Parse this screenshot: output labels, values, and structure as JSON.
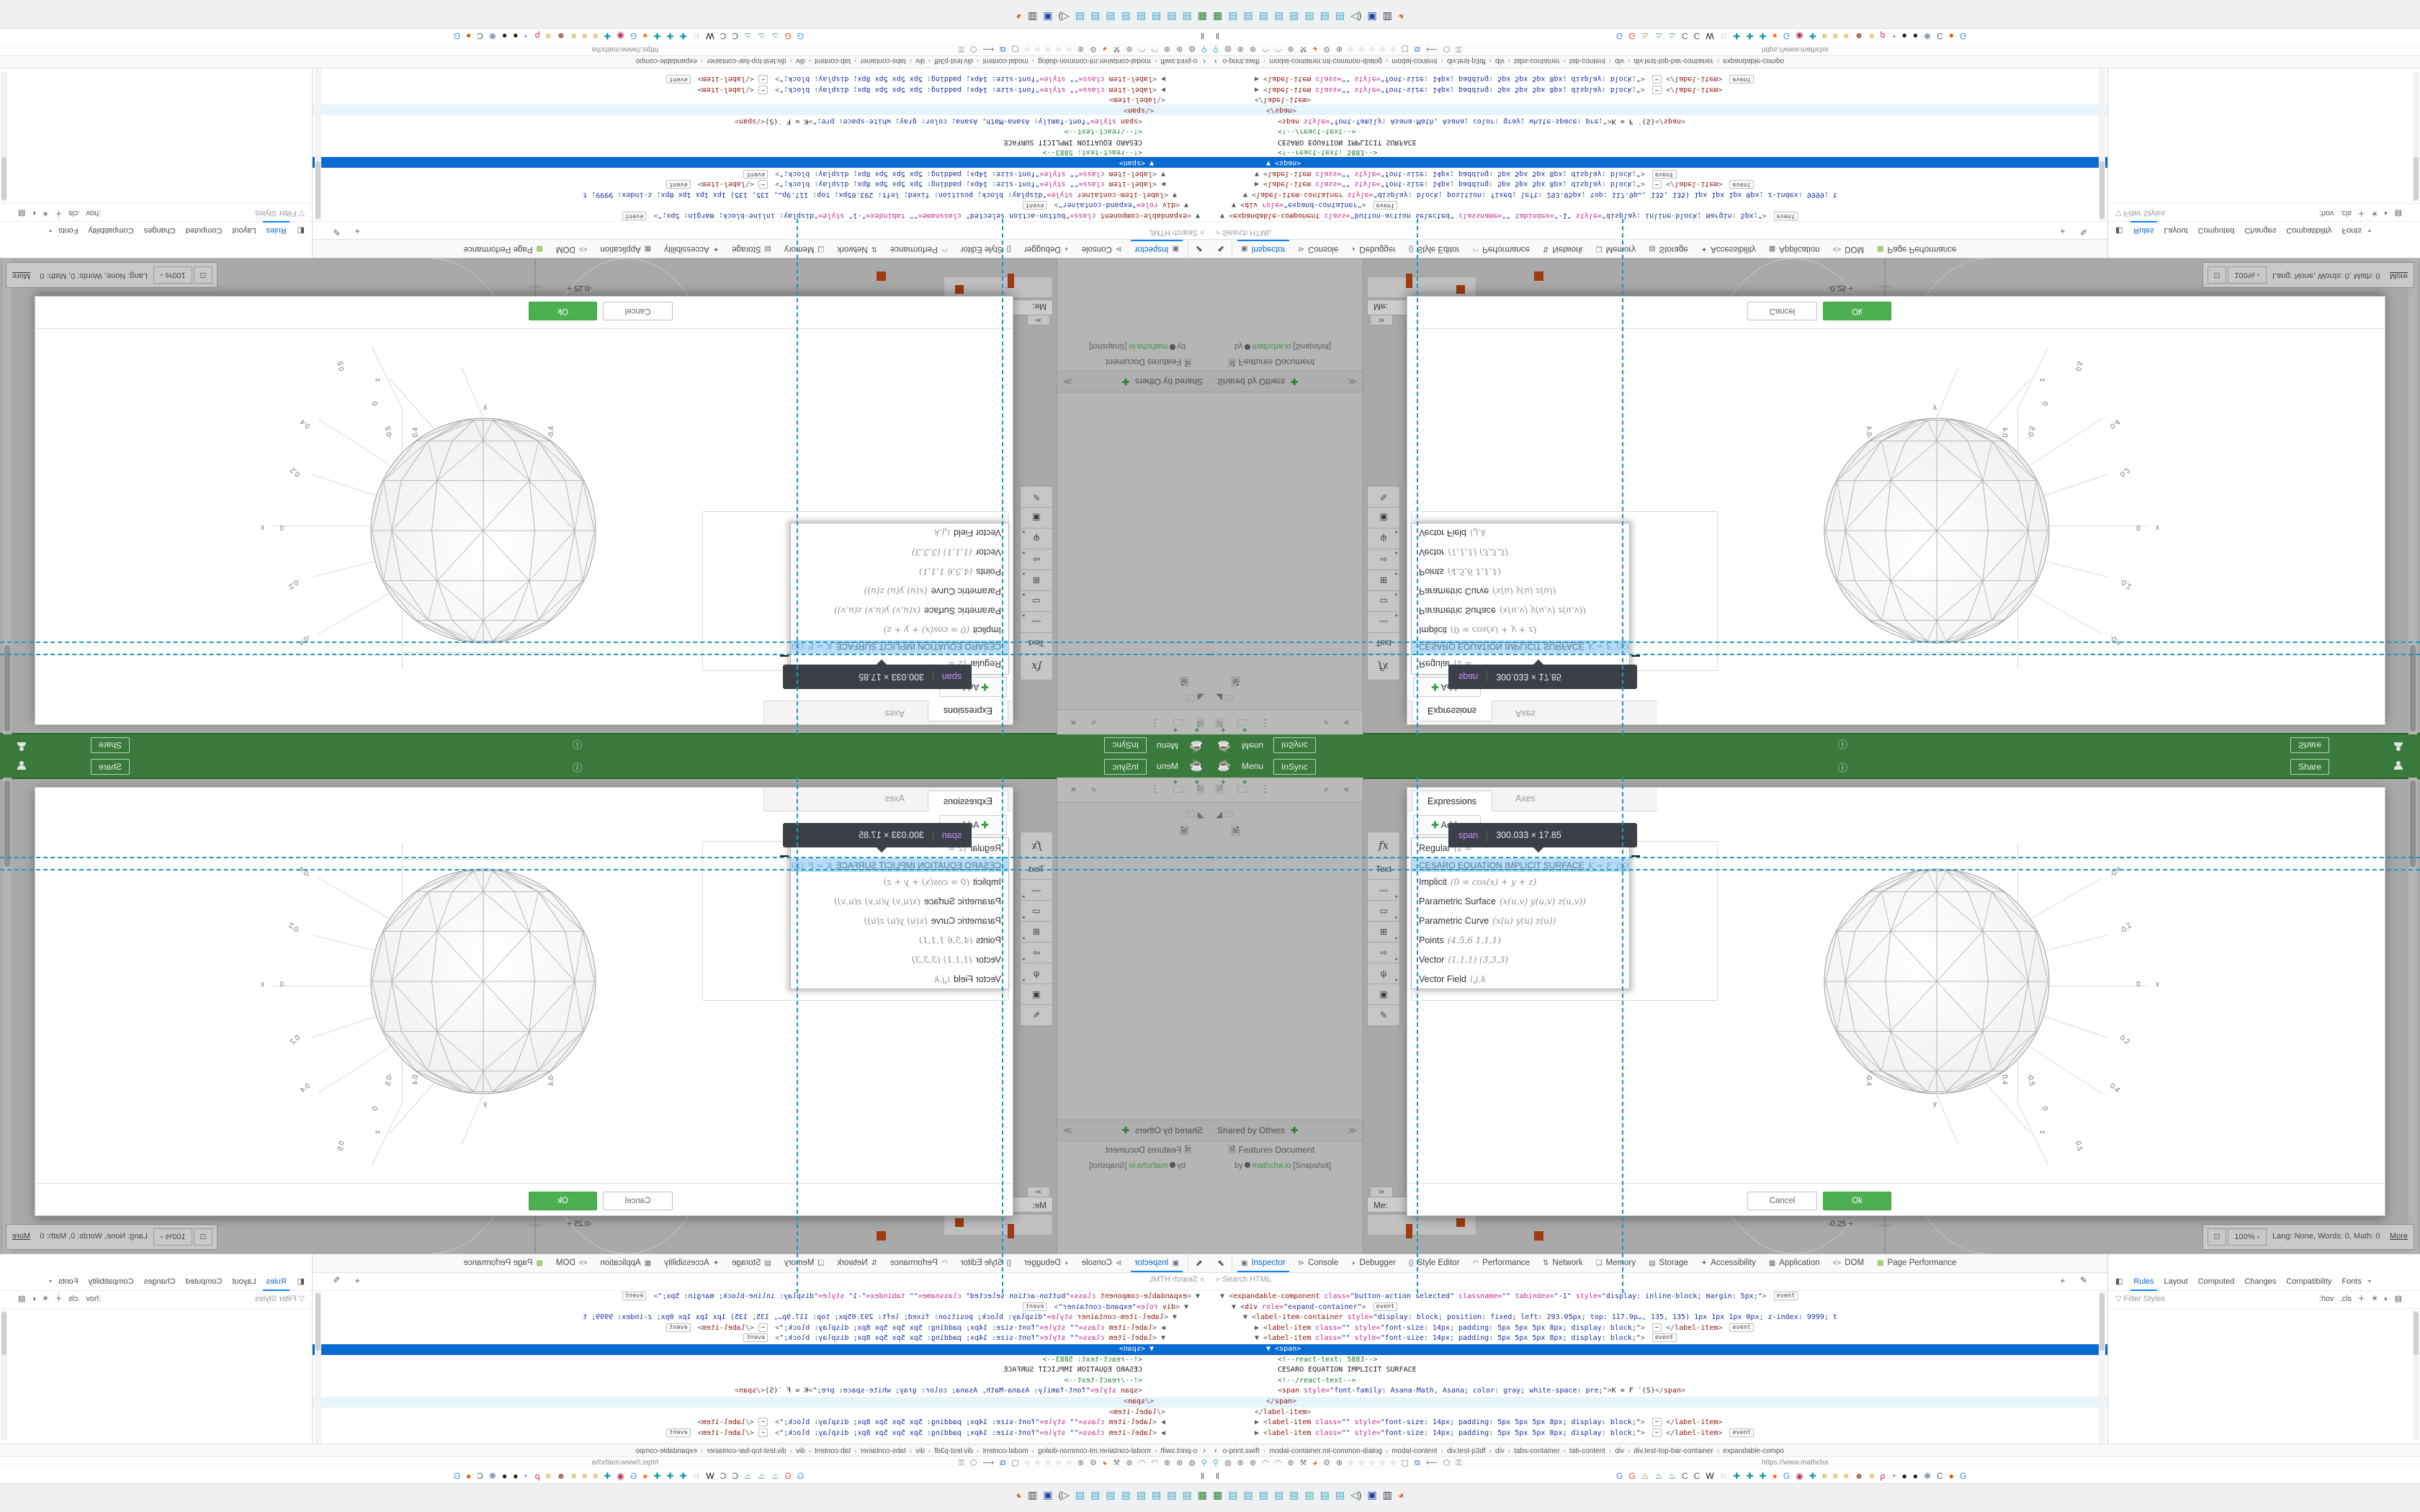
{
  "colors": {
    "header_green": "#3a7b3d",
    "ok_green": "#4caf50",
    "add_green": "#3f9d44",
    "guide_teal": "#1a98c2",
    "selection_blue": "#0a6ad4",
    "highlight_blue": "#b7ddf6",
    "tooltip_bg": "#3b4046",
    "rust_marker": "#9d3c12",
    "devtools_active": "#0a84ff"
  },
  "header": {
    "menu": "Menu",
    "insync": "InSync",
    "share": "Share"
  },
  "sidebar": {
    "section_title": "Shared by Others",
    "doc_title": "Features Document",
    "doc_by": "by",
    "doc_author": "mathcha.io",
    "doc_badge": "[Snapshot]",
    "me_label": "Me:"
  },
  "toolstrip": {
    "items": [
      {
        "t": "fx",
        "name": "function-tool"
      },
      {
        "t": "Text",
        "name": "text-tool"
      },
      {
        "g": "—",
        "a": 1,
        "name": "line-tool"
      },
      {
        "g": "▭",
        "a": 1,
        "name": "shape-tool"
      },
      {
        "g": "⊞",
        "a": 1,
        "name": "table-tool"
      },
      {
        "g": "⇨",
        "a": 1,
        "name": "arrow-tool"
      },
      {
        "g": "ψ",
        "a": 1,
        "name": "plot-tool"
      },
      {
        "g": "▣",
        "name": "image-tool"
      },
      {
        "g": "✎",
        "name": "draw-tool"
      }
    ]
  },
  "dialog": {
    "tabs": [
      "Expressions",
      "Axes"
    ],
    "add_label": "Add",
    "items": [
      {
        "name": "Regular",
        "math": "(z ="
      },
      {
        "name": "CESARO EQUATION IMPLICIT SURFACE",
        "math": "K = F ′(S)"
      },
      {
        "name": "Implicit",
        "math": "(0 = cos(x) + y + z)"
      },
      {
        "name": "Parametric Surface",
        "math": "(x(u,v) y(u,v) z(u,v))"
      },
      {
        "name": "Parametric Curve",
        "math": "(x(u) y(u) z(u))"
      },
      {
        "name": "Points",
        "math": "(4,5,6 1,1,1)"
      },
      {
        "name": "Vector",
        "math": "(1,1,1) (3,3,3)"
      },
      {
        "name": "Vector Field",
        "math": "i,j,k"
      }
    ],
    "cancel_label": "Cancel",
    "ok_label": "Ok"
  },
  "tooltip": {
    "tag": "span",
    "size": "300.033 × 17.85"
  },
  "plot": {
    "labels": [
      "-0.4",
      "-0.2",
      "0",
      "x",
      "0.2",
      "0.4",
      "-0.4",
      "y",
      "0.4",
      "-0.5",
      "0",
      "z",
      "0.5"
    ]
  },
  "sketch": {
    "tick_label": "-0.25 +"
  },
  "status": {
    "zoom_value": "100%",
    "info": "Lang: None, Words: 0, Math: 0",
    "more_label": "More"
  },
  "devtools": {
    "tabs": [
      {
        "ic": "▣",
        "label": "Inspector",
        "active": true
      },
      {
        "ic": "⊳",
        "label": "Console"
      },
      {
        "ic": "◗",
        "label": "Debugger"
      },
      {
        "ic": "{}",
        "label": "Style Editor"
      },
      {
        "ic": "◠",
        "label": "Performance"
      },
      {
        "ic": "⇅",
        "label": "Network"
      },
      {
        "ic": "❏",
        "label": "Memory"
      },
      {
        "ic": "▤",
        "label": "Storage"
      },
      {
        "ic": "✦",
        "label": "Accessibility"
      },
      {
        "ic": "▦",
        "label": "Application"
      },
      {
        "ic": "<>",
        "label": "DOM"
      },
      {
        "ic": "▩",
        "label": "Page Performance",
        "pp": true
      }
    ],
    "search_placeholder": "Search HTML",
    "sidebar_tabs": [
      "Rules",
      "Layout",
      "Computed",
      "Changes",
      "Compatibility",
      "Fonts"
    ],
    "filter_placeholder": "Filter Styles",
    "hov": ":hov",
    "cls": ".cls",
    "markup_lines": [
      {
        "ind": 0,
        "parts": [
          [
            "p",
            "▼ <"
          ],
          [
            "t",
            "expandable-component"
          ],
          [
            "a",
            " class="
          ],
          [
            "v",
            "\"button-action selected\""
          ],
          [
            "a",
            " classname="
          ],
          [
            "v",
            "\"\""
          ],
          [
            "a",
            " tabindex="
          ],
          [
            "v",
            "\"-1\""
          ],
          [
            "a",
            " style="
          ],
          [
            "v",
            "\"display: inline-block; margin: 5px;\""
          ],
          [
            "p",
            "> "
          ],
          [
            "b",
            "event"
          ]
        ]
      },
      {
        "ind": 1,
        "parts": [
          [
            "p",
            "▼ <"
          ],
          [
            "t",
            "div"
          ],
          [
            "a",
            " role="
          ],
          [
            "v",
            "\"expand-container\""
          ],
          [
            "p",
            "> "
          ],
          [
            "b",
            "event"
          ]
        ]
      },
      {
        "ind": 2,
        "parts": [
          [
            "p",
            "▼ <"
          ],
          [
            "t",
            "label-item-container"
          ],
          [
            "a",
            " style="
          ],
          [
            "v",
            "\"display: block; position: fixed; left: 293.05px; top: 117.9p…, 135, 135) 1px 1px 1px 0px; z-index: 9999; t"
          ]
        ]
      },
      {
        "ind": 3,
        "parts": [
          [
            "p",
            "▶ <"
          ],
          [
            "t",
            "label-item"
          ],
          [
            "a",
            " class="
          ],
          [
            "v",
            "\"\""
          ],
          [
            "a",
            " style="
          ],
          [
            "v",
            "\"font-size: 14px; padding: 5px 5px 5px 8px; display: block;\""
          ],
          [
            "p",
            "> "
          ],
          [
            "e",
            "⋯"
          ],
          [
            "p",
            " </"
          ],
          [
            "t",
            "label-item"
          ],
          [
            "p",
            "> "
          ],
          [
            "b",
            "event"
          ]
        ]
      },
      {
        "ind": 3,
        "parts": [
          [
            "p",
            "▼ <"
          ],
          [
            "t",
            "label-item"
          ],
          [
            "a",
            " class="
          ],
          [
            "v",
            "\"\""
          ],
          [
            "a",
            " style="
          ],
          [
            "v",
            "\"font-size: 14px; padding: 5px 5px 5px 8px; display: block;\""
          ],
          [
            "p",
            "> "
          ],
          [
            "b",
            "event"
          ]
        ]
      },
      {
        "ind": 4,
        "cls": "sel",
        "parts": [
          [
            "p",
            "▼ <"
          ],
          [
            "t",
            "span"
          ],
          [
            "p",
            ">"
          ]
        ]
      },
      {
        "ind": 5,
        "parts": [
          [
            "c",
            "<!--react-text: 5883-->"
          ]
        ]
      },
      {
        "ind": 5,
        "parts": [
          [
            "x",
            "CESARO EQUATION IMPLICIT SURFACE"
          ]
        ]
      },
      {
        "ind": 5,
        "parts": [
          [
            "c",
            "<!--/react-text-->"
          ]
        ]
      },
      {
        "ind": 5,
        "parts": [
          [
            "p",
            "<"
          ],
          [
            "t",
            "span"
          ],
          [
            "a",
            " style="
          ],
          [
            "v",
            "\"font-family: Asana-Math, Asana; color: gray; white-space: pre;\""
          ],
          [
            "p",
            ">"
          ],
          [
            "x",
            "K = F ′(S)"
          ],
          [
            "p",
            "</"
          ],
          [
            "t",
            "span"
          ],
          [
            "p",
            ">"
          ]
        ]
      },
      {
        "ind": 4,
        "cls": "hov",
        "parts": [
          [
            "p",
            "</"
          ],
          [
            "t",
            "span"
          ],
          [
            "p",
            ">"
          ]
        ]
      },
      {
        "ind": 3,
        "parts": [
          [
            "p",
            "</"
          ],
          [
            "t",
            "label-item"
          ],
          [
            "p",
            ">"
          ]
        ]
      },
      {
        "ind": 3,
        "parts": [
          [
            "p",
            "▶ <"
          ],
          [
            "t",
            "label-item"
          ],
          [
            "a",
            " class="
          ],
          [
            "v",
            "\"\""
          ],
          [
            "a",
            " style="
          ],
          [
            "v",
            "\"font-size: 14px; padding: 5px 5px 5px 8px; display: block;\""
          ],
          [
            "p",
            "> "
          ],
          [
            "e",
            "⋯"
          ],
          [
            "p",
            " </"
          ],
          [
            "t",
            "label-item"
          ],
          [
            "p",
            ">"
          ]
        ]
      },
      {
        "ind": 3,
        "parts": [
          [
            "p",
            "▶ <"
          ],
          [
            "t",
            "label-item"
          ],
          [
            "a",
            " class="
          ],
          [
            "v",
            "\"\""
          ],
          [
            "a",
            " style="
          ],
          [
            "v",
            "\"font-size: 14px; padding: 5px 5px 5px 8px; display: block;\""
          ],
          [
            "p",
            "> "
          ],
          [
            "e",
            "⋯"
          ],
          [
            "p",
            " </"
          ],
          [
            "t",
            "label-item"
          ],
          [
            "p",
            "> "
          ],
          [
            "b",
            "event"
          ]
        ]
      }
    ],
    "breadcrumb": [
      "o-print.swift",
      "modal-container.mt-common-dialog",
      "modal-content",
      "div.test-p3df",
      "div",
      "tabs-container",
      "tab-content",
      "div",
      "div.test-top-bar-container",
      "expandable-compo"
    ]
  },
  "browser": {
    "url_hint": "https://www.mathcha"
  },
  "rows": {
    "grey": [
      [
        "⚲",
        "#3aa7c0"
      ],
      [
        "◍",
        "#7a7a7a"
      ],
      [
        "⊕",
        "#7a7a7a"
      ],
      [
        "⊕",
        "#7a7a7a"
      ],
      [
        "◠",
        "#7a7a7a"
      ],
      [
        "◠",
        "#7a7a7a"
      ],
      [
        "⊕",
        "#7a7a7a"
      ],
      [
        "⚒",
        "#7a7a7a"
      ],
      [
        "◕",
        "#e06020"
      ],
      [
        "⚙",
        "#7a7a7a"
      ],
      [
        "⊕",
        "#7a7a7a"
      ],
      [
        "○",
        "#9a9a9a"
      ],
      [
        "○",
        "#9a9a9a"
      ],
      [
        "○",
        "#9a9a9a"
      ],
      [
        "○",
        "#9a9a9a"
      ],
      [
        "○",
        "#9a9a9a"
      ],
      [
        "▢",
        "#7a7a7a"
      ],
      [
        "⧉",
        "#2a6fd6"
      ],
      [
        "⟵",
        "#7a7a7a"
      ],
      [
        "⬠",
        "#7a7a7a"
      ],
      [
        "⚿",
        "#7a7a7a"
      ]
    ],
    "favicons": [
      [
        "G",
        "#4285f4"
      ],
      [
        "G",
        "#ea4335"
      ],
      [
        "♨",
        "#2e7d32"
      ],
      [
        "♨",
        "#2e7d32"
      ],
      [
        "♨",
        "#2e7d32"
      ],
      [
        "C",
        "#555"
      ],
      [
        "C",
        "#555"
      ],
      [
        "W",
        "#111"
      ],
      [
        "♘",
        "#888"
      ],
      [
        "✚",
        "#0a9aa0"
      ],
      [
        "✚",
        "#0a9aa0"
      ],
      [
        "✚",
        "#0a9aa0"
      ],
      [
        "●",
        "#ff7139"
      ],
      [
        "G",
        "#4285f4"
      ],
      [
        "◉",
        "#b03565"
      ],
      [
        "✚",
        "#0a9aa0"
      ],
      [
        "≡",
        "#c79200"
      ],
      [
        "≡",
        "#c79200"
      ],
      [
        "≡",
        "#c79200"
      ],
      [
        "☻",
        "#a0665a"
      ],
      [
        "≡",
        "#c79200"
      ],
      [
        "ρ",
        "#c2185b"
      ],
      [
        "◔",
        "#3366cc"
      ],
      [
        "●",
        "#111"
      ],
      [
        "●",
        "#111"
      ],
      [
        "❋",
        "#667788"
      ],
      [
        "C",
        "#555"
      ],
      [
        "●",
        "#e05a00"
      ],
      [
        "G",
        "#4285f4"
      ]
    ],
    "taskbar": [
      [
        "▦",
        "#2f7d32"
      ],
      [
        "▤",
        "#3aa7c0"
      ],
      [
        "▤",
        "#3aa7c0"
      ],
      [
        "▤",
        "#3aa7c0"
      ],
      [
        "▤",
        "#3aa7c0"
      ],
      [
        "▤",
        "#3aa7c0"
      ],
      [
        "▤",
        "#3aa7c0"
      ],
      [
        "▤",
        "#3aa7c0"
      ],
      [
        "▤",
        "#3aa7c0"
      ],
      [
        "◁)",
        "#555555"
      ],
      [
        "▣",
        "#2040a0"
      ],
      [
        "▥",
        "#444444"
      ],
      [
        "◕",
        "#e06020"
      ]
    ]
  }
}
